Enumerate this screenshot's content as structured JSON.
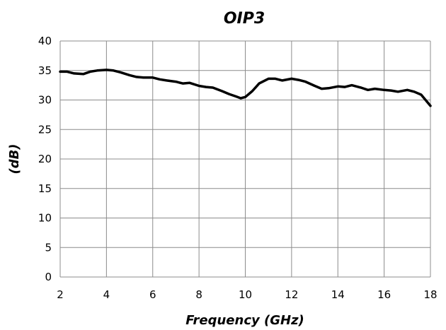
{
  "chart_data": {
    "type": "line",
    "title": "OIP3",
    "xlabel": "Frequency (GHz)",
    "ylabel": "(dB)",
    "xlim": [
      2,
      18
    ],
    "ylim": [
      0,
      40
    ],
    "x_ticks": [
      2,
      4,
      6,
      8,
      10,
      12,
      14,
      16,
      18
    ],
    "y_ticks": [
      0,
      5,
      10,
      15,
      20,
      25,
      30,
      35,
      40
    ],
    "grid": true,
    "legend": "none",
    "line_color": "#000000",
    "series": [
      {
        "x": [
          2.0,
          2.3,
          2.6,
          3.0,
          3.3,
          3.6,
          4.0,
          4.3,
          4.6,
          5.0,
          5.3,
          5.6,
          6.0,
          6.3,
          6.6,
          7.0,
          7.3,
          7.6,
          8.0,
          8.3,
          8.6,
          9.0,
          9.3,
          9.6,
          9.8,
          10.0,
          10.3,
          10.6,
          11.0,
          11.3,
          11.6,
          12.0,
          12.3,
          12.6,
          13.0,
          13.3,
          13.6,
          14.0,
          14.3,
          14.6,
          15.0,
          15.3,
          15.6,
          16.0,
          16.3,
          16.6,
          17.0,
          17.3,
          17.6,
          18.0
        ],
        "y": [
          34.8,
          34.8,
          34.5,
          34.4,
          34.8,
          35.0,
          35.1,
          35.0,
          34.7,
          34.2,
          33.9,
          33.8,
          33.8,
          33.5,
          33.3,
          33.1,
          32.8,
          32.9,
          32.4,
          32.2,
          32.1,
          31.5,
          31.0,
          30.6,
          30.3,
          30.5,
          31.5,
          32.8,
          33.6,
          33.6,
          33.3,
          33.6,
          33.4,
          33.1,
          32.4,
          31.9,
          32.0,
          32.3,
          32.2,
          32.5,
          32.1,
          31.7,
          31.9,
          31.7,
          31.6,
          31.4,
          31.7,
          31.4,
          30.9,
          29.0
        ]
      }
    ]
  }
}
